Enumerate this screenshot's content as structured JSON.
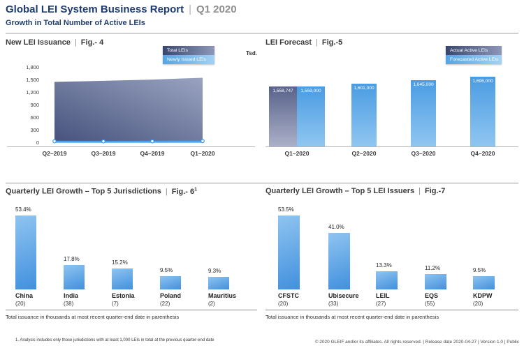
{
  "header": {
    "title": "Global LEI System Business Report",
    "period": "Q1 2020",
    "subtitle": "Growth in Total Number of Active LEIs"
  },
  "misc": {
    "separator": "|"
  },
  "colors": {
    "brand_navy": "#1e3c6d",
    "period_gray": "#8f8f8f",
    "dark_series_start": "#39466f",
    "dark_series_end": "#8d97b8",
    "light_series_start": "#4a9ce2",
    "light_series_end": "#90c6f1",
    "growth_bar_start": "#8fc4f0",
    "growth_bar_end": "#4190de"
  },
  "chart_data": [
    {
      "id": "new-lei-issuance",
      "type": "area",
      "title": "New LEI Issuance",
      "fig_label": "Fig.- 4",
      "y_axis_unit": "Tsd.",
      "y_tick_labels": [
        "1,800",
        "1,500",
        "1,200",
        "900",
        "600",
        "300",
        "0"
      ],
      "ylim": [
        0,
        1800
      ],
      "grid": false,
      "legend_position": "top-right",
      "legend": [
        "Total LEIs",
        "Newly Issued LEIs"
      ],
      "categories": [
        "Q2–2019",
        "Q3–2019",
        "Q4–2019",
        "Q1–2020"
      ],
      "series": [
        {
          "name": "Total LEIs",
          "values": [
            1460,
            1485,
            1515,
            1559
          ]
        },
        {
          "name": "Newly Issued LEIs",
          "values": [
            40,
            38,
            40,
            45
          ]
        }
      ]
    },
    {
      "id": "lei-forecast",
      "type": "bar",
      "title": "LEI Forecast",
      "fig_label": "Fig.-5",
      "legend_position": "top-right",
      "legend": [
        "Actual Active LEIs",
        "Forecasted Active LEIs"
      ],
      "categories": [
        "Q1–2020",
        "Q2–2020",
        "Q3–2020",
        "Q4–2020"
      ],
      "series": [
        {
          "name": "Actual Active LEIs",
          "values": [
            1558747,
            null,
            null,
            null
          ],
          "labels": [
            "1,558,747",
            "",
            "",
            ""
          ]
        },
        {
          "name": "Forecasted Active LEIs",
          "values": [
            1559000,
            1601000,
            1645000,
            1696000
          ],
          "labels": [
            "1,559,000",
            "1,601,000",
            "1,645,000",
            "1,696,000"
          ]
        }
      ]
    },
    {
      "id": "top5-jurisdictions",
      "type": "bar",
      "title": "Quarterly LEI Growth – Top 5 Jurisdictions",
      "fig_label": "Fig.- 6",
      "fig_superscript": "1",
      "categories": [
        "China",
        "India",
        "Estonia",
        "Poland",
        "Mauritius"
      ],
      "counts": [
        "(20)",
        "(38)",
        "(7)",
        "(22)",
        "(2)"
      ],
      "values": [
        53.4,
        17.8,
        15.2,
        9.5,
        9.3
      ],
      "value_labels": [
        "53.4%",
        "17.8%",
        "15.2%",
        "9.5%",
        "9.3%"
      ],
      "caption": "Total issuance in thousands at most recent quarter-end date in parenthesis"
    },
    {
      "id": "top5-lei-issuers",
      "type": "bar",
      "title": "Quarterly LEI Growth – Top 5 LEI Issuers",
      "fig_label": "Fig.-7",
      "categories": [
        "CFSTC",
        "Ubisecure",
        "LEIL",
        "EQS",
        "KDPW"
      ],
      "counts": [
        "(20)",
        "(33)",
        "(27)",
        "(55)",
        "(20)"
      ],
      "values": [
        53.5,
        41.0,
        13.3,
        11.2,
        9.5
      ],
      "value_labels": [
        "53.5%",
        "41.0%",
        "13.3%",
        "11.2%",
        "9.5%"
      ],
      "caption": "Total issuance in thousands at most recent quarter-end date in parenthesis"
    }
  ],
  "footer": {
    "footnote": "1. Analysis includes only those jurisdictions with at least 1,000 LEIs in total at the previous quarter-end date",
    "copyright": "© 2020 GLEIF and/or its affiliates. All rights reserved.  |  Release date 2020-04-27  |  Version 1.0  |  Public"
  }
}
